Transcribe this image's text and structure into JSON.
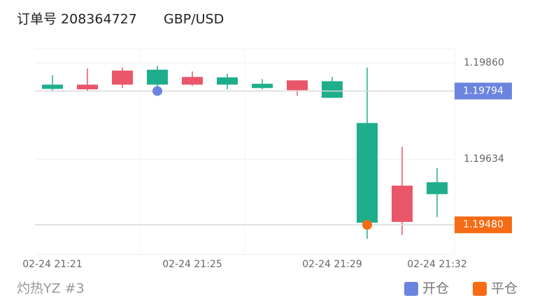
{
  "order": "订单号 208364727",
  "symbol": "GBP/USD",
  "footer": "灼热YZ #3",
  "chart_data": {
    "type": "candlestick",
    "categories": [
      "02-24 21:21",
      null,
      null,
      null,
      "02-24 21:25",
      null,
      null,
      null,
      "02-24 21:29",
      null,
      null,
      "02-24 21:32"
    ],
    "open": [
      1.19799,
      1.19809,
      1.19842,
      1.19809,
      1.19827,
      1.19809,
      1.19801,
      1.19819,
      1.19778,
      1.19485,
      1.19572,
      1.19552
    ],
    "high": [
      1.19831,
      1.19847,
      1.19849,
      1.19853,
      1.1984,
      1.19835,
      1.19822,
      1.19819,
      1.19827,
      1.19849,
      1.19663,
      1.19613
    ],
    "low": [
      1.19793,
      1.19793,
      1.19801,
      1.19803,
      1.19806,
      1.19798,
      1.19798,
      1.19783,
      1.19778,
      1.19447,
      1.19456,
      1.19498
    ],
    "close": [
      1.19809,
      1.19798,
      1.19809,
      1.19844,
      1.19809,
      1.19826,
      1.19811,
      1.19796,
      1.19817,
      1.19719,
      1.19487,
      1.1958
    ],
    "up_color": "#1fae8c",
    "down_color": "#e9566a",
    "markers": [
      {
        "name": "开仓",
        "color": "#6b84e0",
        "values": [
          null,
          null,
          null,
          1.19794,
          null,
          null,
          null,
          null,
          null,
          null,
          null,
          null
        ],
        "value_labels": [
          null,
          null,
          null,
          "1.19794",
          null,
          null,
          null,
          null,
          null,
          null,
          null,
          null
        ]
      },
      {
        "name": "平仓",
        "color": "#f76b15",
        "values": [
          null,
          null,
          null,
          null,
          null,
          null,
          null,
          null,
          null,
          1.1948,
          null,
          null
        ],
        "value_labels": [
          null,
          null,
          null,
          null,
          null,
          null,
          null,
          null,
          null,
          "1.19480",
          null,
          null
        ]
      }
    ],
    "ylim": [
      1.1941,
      1.19893
    ],
    "yticks": [
      {
        "value": 1.1986,
        "label": "1.19860"
      },
      {
        "value": 1.19634,
        "label": "1.19634"
      }
    ],
    "grid": true
  }
}
